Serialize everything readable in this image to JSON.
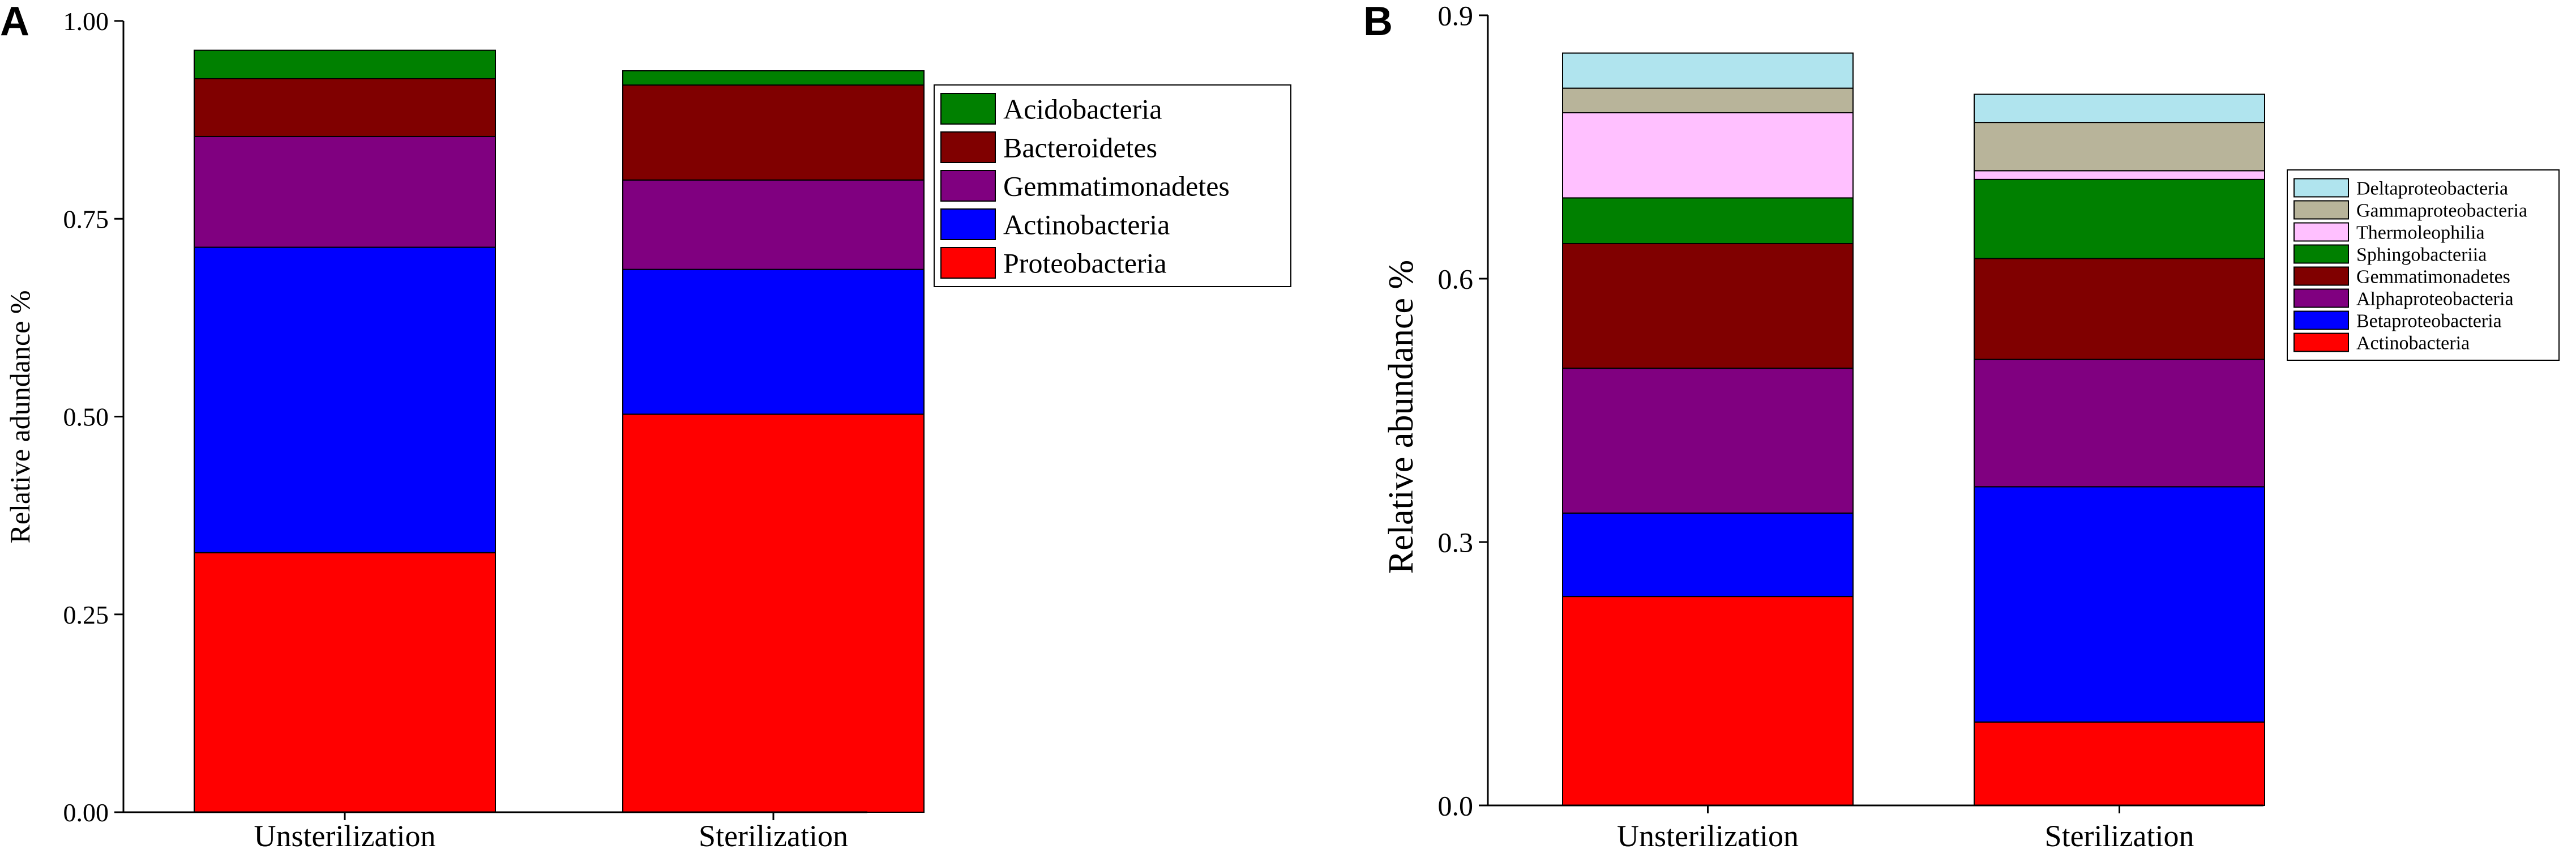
{
  "chart_data": [
    {
      "type": "bar",
      "stacked": true,
      "panel_label": "A",
      "title": "",
      "xlabel": "",
      "ylabel": "Relative adundance %",
      "ylim": [
        0,
        1.0
      ],
      "yticks": [
        "0.00",
        "0.25",
        "0.50",
        "0.75",
        "1.00"
      ],
      "ytick_values": [
        0,
        0.25,
        0.5,
        0.75,
        1.0
      ],
      "categories": [
        "Unsterilization",
        "Sterilization"
      ],
      "legend_position": "top-right",
      "legend_order": [
        "Acidobacteria",
        "Bacteroidetes",
        "Gemmatimonadetes",
        "Actinobacteria",
        "Proteobacteria"
      ],
      "series": [
        {
          "name": "Proteobacteria",
          "color": "#ff0000",
          "values": [
            0.328,
            0.503
          ]
        },
        {
          "name": "Actinobacteria",
          "color": "#0000ff",
          "values": [
            0.386,
            0.183
          ]
        },
        {
          "name": "Gemmatimonadetes",
          "color": "#800080",
          "values": [
            0.14,
            0.113
          ]
        },
        {
          "name": "Bacteroidetes",
          "color": "#800000",
          "values": [
            0.073,
            0.12
          ]
        },
        {
          "name": "Acidobacteria",
          "color": "#008000",
          "values": [
            0.036,
            0.018
          ]
        }
      ]
    },
    {
      "type": "bar",
      "stacked": true,
      "panel_label": "B",
      "title": "",
      "xlabel": "",
      "ylabel": "Relative abundance %",
      "ylim": [
        0,
        0.9
      ],
      "yticks": [
        "0.0",
        "0.3",
        "0.6",
        "0.9"
      ],
      "ytick_values": [
        0,
        0.3,
        0.6,
        0.9
      ],
      "categories": [
        "Unsterilization",
        "Sterilization"
      ],
      "legend_position": "top-right",
      "legend_order": [
        "Deltaproteobacteria",
        "Gammaproteobacteria",
        "Thermoleophilia",
        "Sphingobacteriia",
        "Gemmatimonadetes",
        "Alphaproteobacteria",
        "Betaproteobacteria",
        "Actinobacteria"
      ],
      "series": [
        {
          "name": "Actinobacteria",
          "color": "#ff0000",
          "values": [
            0.238,
            0.095
          ]
        },
        {
          "name": "Betaproteobacteria",
          "color": "#0000ff",
          "values": [
            0.095,
            0.268
          ]
        },
        {
          "name": "Alphaproteobacteria",
          "color": "#800080",
          "values": [
            0.165,
            0.145
          ]
        },
        {
          "name": "Gemmatimonadetes",
          "color": "#800000",
          "values": [
            0.142,
            0.115
          ]
        },
        {
          "name": "Sphingobacteriia",
          "color": "#008000",
          "values": [
            0.052,
            0.09
          ]
        },
        {
          "name": "Thermoleophilia",
          "color": "#ffc0ff",
          "values": [
            0.097,
            0.01
          ]
        },
        {
          "name": "Gammaproteobacteria",
          "color": "#b8b49a",
          "values": [
            0.028,
            0.055
          ]
        },
        {
          "name": "Deltaproteobacteria",
          "color": "#b0e4ee",
          "values": [
            0.04,
            0.032
          ]
        }
      ]
    }
  ]
}
